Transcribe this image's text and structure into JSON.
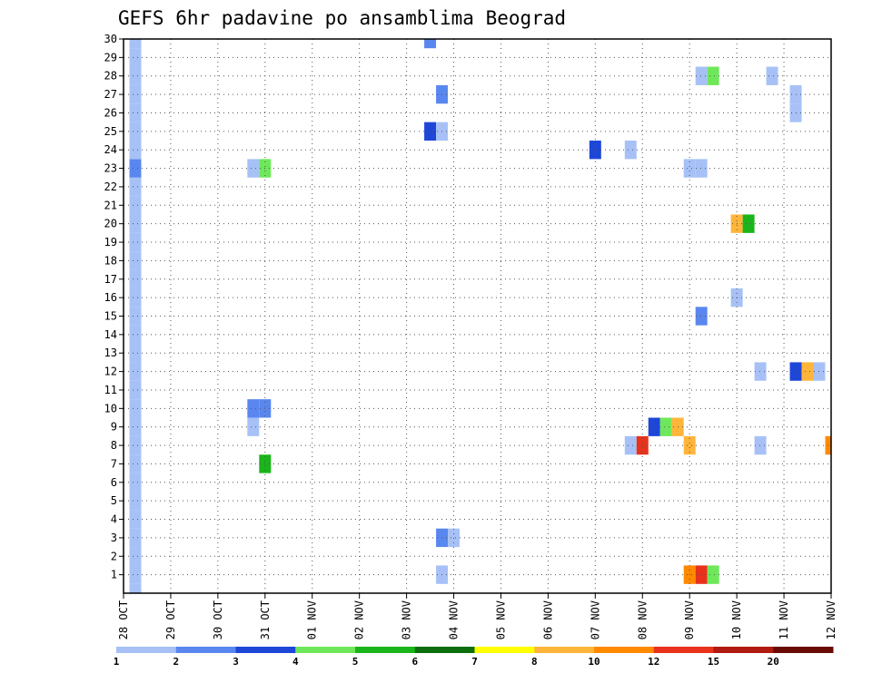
{
  "chart_data": {
    "type": "heatmap",
    "title": "GEFS 6hr padavine po ansamblima Beograd",
    "xlabel": "",
    "ylabel": "",
    "x_ticks": [
      "28 OCT",
      "29 OCT",
      "30 OCT",
      "31 OCT",
      "01 NOV",
      "02 NOV",
      "03 NOV",
      "04 NOV",
      "05 NOV",
      "06 NOV",
      "07 NOV",
      "08 NOV",
      "09 NOV",
      "10 NOV",
      "11 NOV",
      "12 NOV"
    ],
    "y_ticks": [
      1,
      2,
      3,
      4,
      5,
      6,
      7,
      8,
      9,
      10,
      11,
      12,
      13,
      14,
      15,
      16,
      17,
      18,
      19,
      20,
      21,
      22,
      23,
      24,
      25,
      26,
      27,
      28,
      29,
      30
    ],
    "xlim_days": [
      0,
      15
    ],
    "ylim_members": [
      0,
      30
    ],
    "grid": true,
    "legend_position": "bottom",
    "colorbar": {
      "labels": [
        "1",
        "2",
        "3",
        "4",
        "5",
        "6",
        "7",
        "8",
        "10",
        "12",
        "15",
        "20"
      ],
      "colors": [
        "#a7c1f7",
        "#5a87ef",
        "#1e47d8",
        "#6ee85a",
        "#1ab51a",
        "#0c6e0c",
        "#ffff00",
        "#ffb53a",
        "#ff8a00",
        "#e8321c",
        "#b01a10",
        "#6a0a04"
      ]
    },
    "cells": [
      {
        "member": 0,
        "day": 0.25,
        "cat": 0
      },
      {
        "member": 1,
        "day": 0.25,
        "cat": 0
      },
      {
        "member": 1,
        "day": 6.75,
        "cat": 0
      },
      {
        "member": 2,
        "day": 0.25,
        "cat": 0
      },
      {
        "member": 3,
        "day": 0.25,
        "cat": 0
      },
      {
        "member": 4,
        "day": 0.25,
        "cat": 0
      },
      {
        "member": 5,
        "day": 0.25,
        "cat": 0
      },
      {
        "member": 6,
        "day": 0.25,
        "cat": 0
      },
      {
        "member": 7,
        "day": 0.25,
        "cat": 0
      },
      {
        "member": 8,
        "day": 0.25,
        "cat": 0
      },
      {
        "member": 9,
        "day": 0.25,
        "cat": 0
      },
      {
        "member": 10,
        "day": 0.25,
        "cat": 0
      },
      {
        "member": 11,
        "day": 0.25,
        "cat": 0
      },
      {
        "member": 12,
        "day": 0.25,
        "cat": 0
      },
      {
        "member": 13,
        "day": 0.25,
        "cat": 0
      },
      {
        "member": 14,
        "day": 0.25,
        "cat": 0
      },
      {
        "member": 15,
        "day": 0.25,
        "cat": 0
      },
      {
        "member": 16,
        "day": 0.25,
        "cat": 0
      },
      {
        "member": 17,
        "day": 0.25,
        "cat": 0
      },
      {
        "member": 18,
        "day": 0.25,
        "cat": 0
      },
      {
        "member": 19,
        "day": 0.25,
        "cat": 0
      },
      {
        "member": 20,
        "day": 0.25,
        "cat": 0
      },
      {
        "member": 21,
        "day": 0.25,
        "cat": 0
      },
      {
        "member": 22,
        "day": 0.25,
        "cat": 0
      },
      {
        "member": 23,
        "day": 0.25,
        "cat": 1
      },
      {
        "member": 24,
        "day": 0.25,
        "cat": 0
      },
      {
        "member": 25,
        "day": 0.25,
        "cat": 0
      },
      {
        "member": 26,
        "day": 0.25,
        "cat": 0
      },
      {
        "member": 27,
        "day": 0.25,
        "cat": 0
      },
      {
        "member": 28,
        "day": 0.25,
        "cat": 0
      },
      {
        "member": 29,
        "day": 0.25,
        "cat": 0
      },
      {
        "member": 30,
        "day": 0.25,
        "cat": 0
      },
      {
        "member": 30,
        "day": 6.5,
        "cat": 1
      },
      {
        "member": 28,
        "day": 12.25,
        "cat": 0
      },
      {
        "member": 28,
        "day": 12.5,
        "cat": 3
      },
      {
        "member": 28,
        "day": 13.75,
        "cat": 0
      },
      {
        "member": 27,
        "day": 6.75,
        "cat": 1
      },
      {
        "member": 27,
        "day": 14.25,
        "cat": 0
      },
      {
        "member": 26,
        "day": 14.25,
        "cat": 0
      },
      {
        "member": 25,
        "day": 6.5,
        "cat": 2
      },
      {
        "member": 25,
        "day": 6.75,
        "cat": 0
      },
      {
        "member": 24,
        "day": 10.0,
        "cat": 2
      },
      {
        "member": 24,
        "day": 10.75,
        "cat": 0
      },
      {
        "member": 23,
        "day": 2.75,
        "cat": 0
      },
      {
        "member": 23,
        "day": 3.0,
        "cat": 3
      },
      {
        "member": 23,
        "day": 12.0,
        "cat": 0
      },
      {
        "member": 23,
        "day": 12.25,
        "cat": 0
      },
      {
        "member": 20,
        "day": 13.0,
        "cat": 7
      },
      {
        "member": 20,
        "day": 13.25,
        "cat": 4
      },
      {
        "member": 16,
        "day": 13.0,
        "cat": 0
      },
      {
        "member": 15,
        "day": 12.25,
        "cat": 1
      },
      {
        "member": 12,
        "day": 13.5,
        "cat": 0
      },
      {
        "member": 12,
        "day": 14.25,
        "cat": 2
      },
      {
        "member": 12,
        "day": 14.5,
        "cat": 7
      },
      {
        "member": 12,
        "day": 14.75,
        "cat": 0
      },
      {
        "member": 10,
        "day": 2.75,
        "cat": 1
      },
      {
        "member": 10,
        "day": 3.0,
        "cat": 1
      },
      {
        "member": 9,
        "day": 2.75,
        "cat": 0
      },
      {
        "member": 9,
        "day": 11.25,
        "cat": 2
      },
      {
        "member": 9,
        "day": 11.5,
        "cat": 3
      },
      {
        "member": 9,
        "day": 11.75,
        "cat": 7
      },
      {
        "member": 8,
        "day": 10.75,
        "cat": 0
      },
      {
        "member": 8,
        "day": 11.0,
        "cat": 9
      },
      {
        "member": 8,
        "day": 12.0,
        "cat": 7
      },
      {
        "member": 8,
        "day": 13.5,
        "cat": 0
      },
      {
        "member": 8,
        "day": 15.0,
        "cat": 8
      },
      {
        "member": 7,
        "day": 3.0,
        "cat": 4
      },
      {
        "member": 3,
        "day": 6.75,
        "cat": 1
      },
      {
        "member": 3,
        "day": 7.0,
        "cat": 0
      },
      {
        "member": 1,
        "day": 12.0,
        "cat": 8
      },
      {
        "member": 1,
        "day": 12.25,
        "cat": 9
      },
      {
        "member": 1,
        "day": 12.5,
        "cat": 3
      }
    ]
  }
}
